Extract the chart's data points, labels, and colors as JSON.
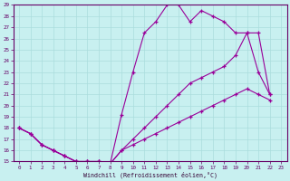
{
  "bg_color": "#c8f0f0",
  "grid_color": "#aadddd",
  "line_color": "#990099",
  "xlabel": "Windchill (Refroidissement éolien,°C)",
  "xlim": [
    -0.5,
    23.5
  ],
  "ylim": [
    15,
    29
  ],
  "yticks": [
    15,
    16,
    17,
    18,
    19,
    20,
    21,
    22,
    23,
    24,
    25,
    26,
    27,
    28,
    29
  ],
  "xticks": [
    0,
    1,
    2,
    3,
    4,
    5,
    6,
    7,
    8,
    9,
    10,
    11,
    12,
    13,
    14,
    15,
    16,
    17,
    18,
    19,
    20,
    21,
    22,
    23
  ],
  "line1_x": [
    0,
    1,
    2,
    3,
    4,
    5,
    6,
    7,
    8,
    9,
    10,
    11,
    12,
    13,
    14,
    15,
    16,
    17,
    18,
    19,
    20,
    21,
    22
  ],
  "line1_y": [
    18,
    17.5,
    16.5,
    16,
    15.5,
    15,
    15,
    15,
    14.8,
    19.2,
    23,
    26.5,
    27.5,
    29,
    29,
    27.5,
    28.5,
    28,
    27.5,
    26.5,
    26.5,
    23,
    21
  ],
  "line2_x": [
    0,
    1,
    2,
    3,
    4,
    5,
    6,
    7,
    8,
    9,
    10,
    11,
    12,
    13,
    14,
    15,
    16,
    17,
    18,
    19,
    20,
    21,
    22
  ],
  "line2_y": [
    18,
    17.5,
    16.5,
    16,
    15.5,
    15,
    15,
    15,
    14.8,
    16,
    17,
    18,
    19,
    20,
    21,
    22,
    22.5,
    23,
    23.5,
    24.5,
    26.5,
    26.5,
    21
  ],
  "line3_x": [
    0,
    1,
    2,
    3,
    4,
    5,
    6,
    7,
    8,
    9,
    10,
    11,
    12,
    13,
    14,
    15,
    16,
    17,
    18,
    19,
    20,
    21,
    22
  ],
  "line3_y": [
    18,
    17.5,
    16.5,
    16,
    15.5,
    15,
    15,
    15,
    14.8,
    16,
    16.5,
    17,
    17.5,
    18,
    18.5,
    19,
    19.5,
    20,
    20.5,
    21,
    21.5,
    21,
    20.5
  ]
}
